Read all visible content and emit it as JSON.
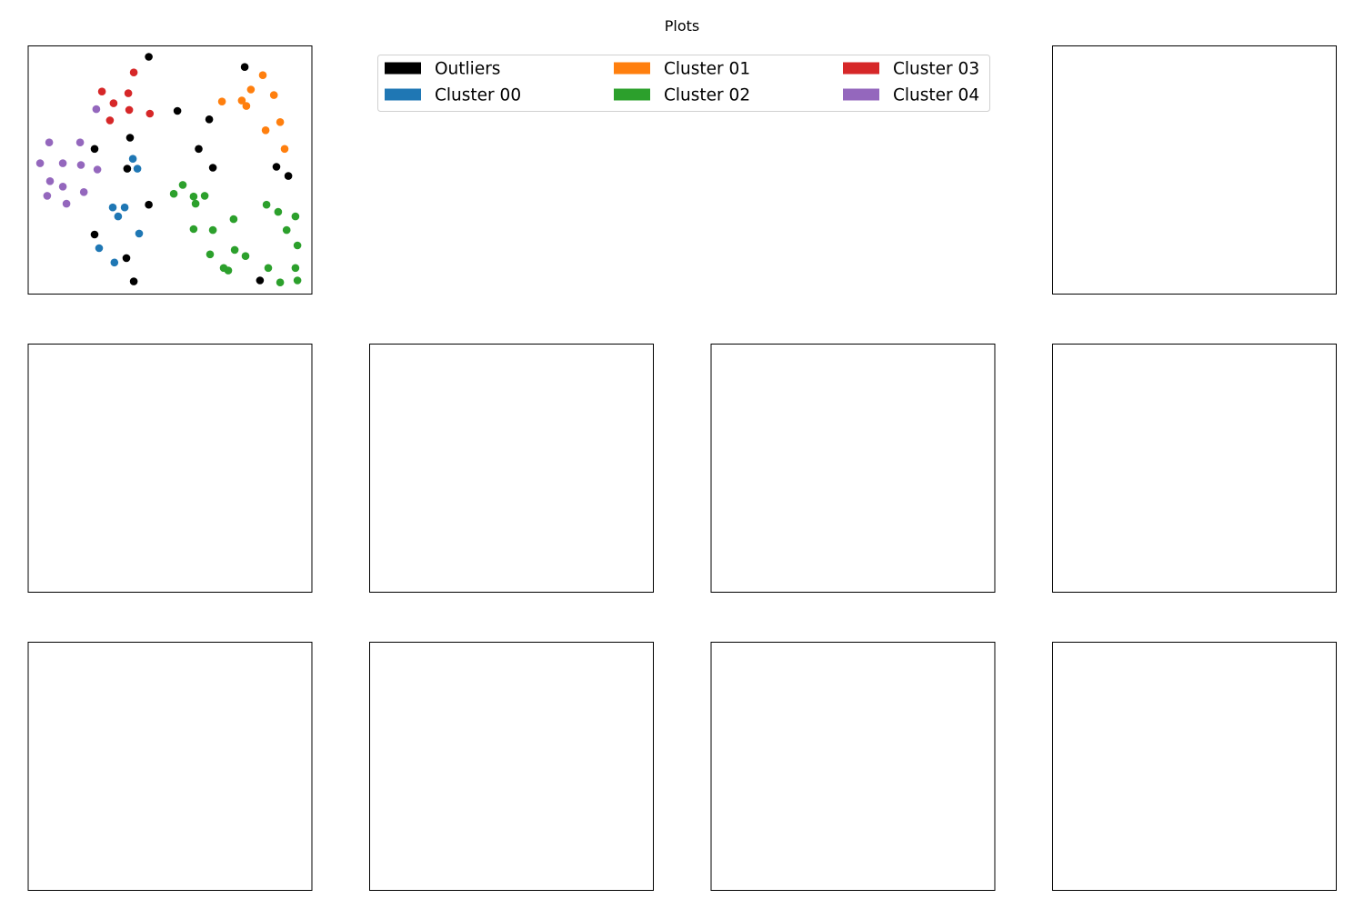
{
  "figure": {
    "title": "Plots"
  },
  "legend": {
    "placement": "top-center",
    "entries": [
      {
        "label": "Outliers",
        "color": "#000000"
      },
      {
        "label": "Cluster 00",
        "color": "#1f77b4"
      },
      {
        "label": "Cluster 01",
        "color": "#ff7f0e"
      },
      {
        "label": "Cluster 02",
        "color": "#2ca02c"
      },
      {
        "label": "Cluster 03",
        "color": "#d62728"
      },
      {
        "label": "Cluster 04",
        "color": "#9467bd"
      }
    ]
  },
  "chart_data": {
    "type": "scatter",
    "title": "Plots",
    "xlabel": "",
    "ylabel": "",
    "axes_visible": false,
    "grid": false,
    "legend_placement": "top-center",
    "xlim": [
      0,
      100
    ],
    "ylim": [
      0,
      100
    ],
    "empty_panels": 10,
    "series": [
      {
        "name": "Outliers",
        "color": "#000000",
        "points": [
          [
            42.5,
            95.6
          ],
          [
            76.3,
            91.5
          ],
          [
            52.6,
            73.8
          ],
          [
            63.8,
            70.4
          ],
          [
            35.9,
            63.0
          ],
          [
            23.4,
            58.5
          ],
          [
            60.1,
            58.5
          ],
          [
            34.9,
            50.5
          ],
          [
            65.1,
            50.9
          ],
          [
            87.5,
            51.3
          ],
          [
            91.7,
            47.6
          ],
          [
            42.5,
            36.0
          ],
          [
            23.4,
            24.0
          ],
          [
            34.6,
            14.5
          ],
          [
            37.2,
            5.1
          ],
          [
            81.7,
            5.5
          ]
        ]
      },
      {
        "name": "Cluster 00",
        "color": "#1f77b4",
        "points": [
          [
            36.9,
            54.5
          ],
          [
            38.5,
            50.5
          ],
          [
            29.8,
            34.9
          ],
          [
            34.0,
            34.9
          ],
          [
            31.7,
            31.3
          ],
          [
            39.1,
            24.4
          ],
          [
            25.0,
            18.5
          ],
          [
            30.4,
            12.7
          ]
        ]
      },
      {
        "name": "Cluster 01",
        "color": "#ff7f0e",
        "points": [
          [
            82.7,
            88.2
          ],
          [
            78.5,
            82.4
          ],
          [
            86.6,
            80.2
          ],
          [
            68.3,
            77.6
          ],
          [
            75.3,
            78.0
          ],
          [
            76.9,
            75.8
          ],
          [
            88.8,
            69.3
          ],
          [
            83.7,
            66.0
          ],
          [
            90.4,
            58.5
          ]
        ]
      },
      {
        "name": "Cluster 02",
        "color": "#2ca02c",
        "points": [
          [
            54.5,
            44.0
          ],
          [
            51.3,
            40.4
          ],
          [
            58.3,
            39.3
          ],
          [
            62.2,
            39.6
          ],
          [
            59.0,
            36.4
          ],
          [
            84.0,
            36.0
          ],
          [
            88.1,
            33.1
          ],
          [
            94.2,
            31.3
          ],
          [
            72.4,
            30.2
          ],
          [
            58.3,
            26.2
          ],
          [
            65.1,
            25.8
          ],
          [
            91.1,
            25.8
          ],
          [
            94.9,
            19.6
          ],
          [
            72.8,
            17.8
          ],
          [
            64.1,
            16.0
          ],
          [
            76.6,
            15.3
          ],
          [
            68.9,
            10.5
          ],
          [
            70.5,
            9.5
          ],
          [
            84.6,
            10.5
          ],
          [
            94.2,
            10.5
          ],
          [
            88.8,
            4.7
          ],
          [
            94.9,
            5.5
          ]
        ]
      },
      {
        "name": "Cluster 03",
        "color": "#d62728",
        "points": [
          [
            37.2,
            89.3
          ],
          [
            26.0,
            81.6
          ],
          [
            35.3,
            80.9
          ],
          [
            30.1,
            76.9
          ],
          [
            35.6,
            74.2
          ],
          [
            42.9,
            72.7
          ],
          [
            28.8,
            70.0
          ]
        ]
      },
      {
        "name": "Cluster 04",
        "color": "#9467bd",
        "points": [
          [
            24.0,
            74.5
          ],
          [
            7.4,
            61.1
          ],
          [
            18.3,
            61.1
          ],
          [
            4.2,
            52.7
          ],
          [
            12.2,
            52.7
          ],
          [
            18.6,
            52.0
          ],
          [
            24.4,
            50.2
          ],
          [
            7.7,
            45.5
          ],
          [
            12.2,
            43.3
          ],
          [
            19.6,
            41.1
          ],
          [
            6.7,
            39.6
          ],
          [
            13.5,
            36.4
          ]
        ]
      }
    ]
  }
}
